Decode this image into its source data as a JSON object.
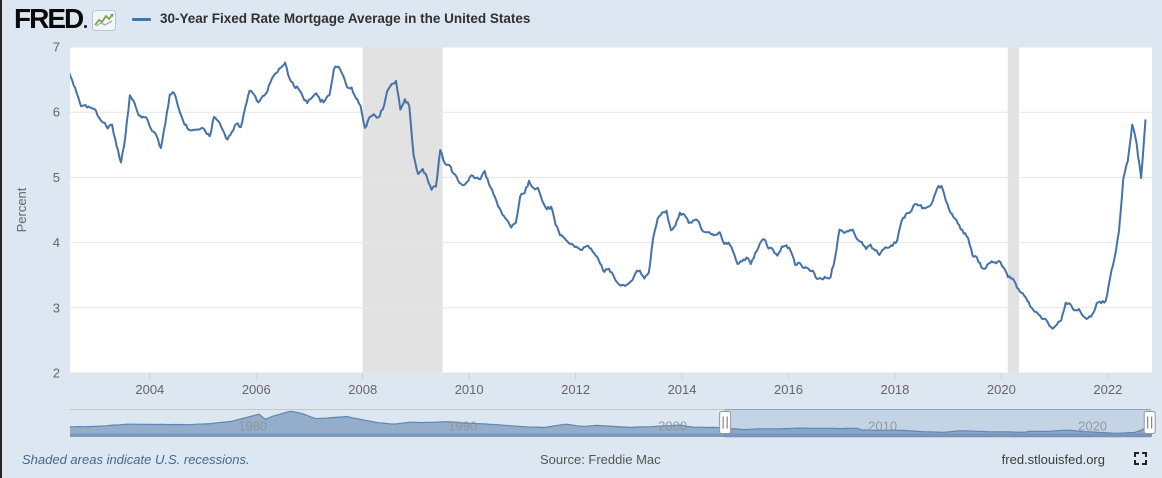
{
  "header": {
    "logo_text": "FRED",
    "title": "30-Year Fixed Rate Mortgage Average in the United States"
  },
  "footer": {
    "note": "Shaded areas indicate U.S. recessions.",
    "source": "Source: Freddie Mac",
    "site": "fred.stlouisfed.org"
  },
  "colors": {
    "page_bg": "#dce7f1",
    "plot_bg": "#ffffff",
    "series_line": "#4572a7",
    "recession_band": "#e2e2e2",
    "gridline": "#e6e6e6",
    "axis_text": "#666666",
    "nav_fill": "#93adcb",
    "nav_stroke": "#5f87b2",
    "nav_base_band": "#7e99bc",
    "nav_label": "#8f9499",
    "selection_tint": "rgba(105,138,180,0.20)",
    "selection_border": "rgba(105,138,180,0.50)"
  },
  "chart_data": {
    "type": "line",
    "title": "30-Year Fixed Rate Mortgage Average in the United States",
    "ylabel": "Percent",
    "ylim": [
      2,
      7
    ],
    "yticks": [
      2,
      3,
      4,
      5,
      6,
      7
    ],
    "xlim": [
      2002.5,
      2022.83
    ],
    "xticks": [
      2004,
      2006,
      2008,
      2010,
      2012,
      2014,
      2016,
      2018,
      2020,
      2022
    ],
    "grid": "horizontal",
    "legend_position": "top-header",
    "recessions": [
      [
        2008.0,
        2009.5
      ],
      [
        2020.12,
        2020.33
      ]
    ],
    "series": {
      "name": "30-Year Fixed Rate Mortgage Average in the United States",
      "units": "percent",
      "frequency": "monthly (weekly source data)",
      "monthly_percent": {
        "2002": [
          null,
          null,
          null,
          null,
          6.81,
          6.65,
          6.49,
          6.29,
          6.09,
          6.11,
          6.07,
          6.05
        ],
        "2003": [
          5.92,
          5.84,
          5.75,
          5.81,
          5.48,
          5.23,
          5.63,
          6.26,
          6.15,
          5.95,
          5.93,
          5.88
        ],
        "2004": [
          5.71,
          5.64,
          5.45,
          5.83,
          6.27,
          6.29,
          6.06,
          5.87,
          5.75,
          5.72,
          5.73,
          5.75
        ],
        "2005": [
          5.71,
          5.63,
          5.93,
          5.86,
          5.72,
          5.58,
          5.7,
          5.82,
          5.77,
          6.07,
          6.33,
          6.27
        ],
        "2006": [
          6.15,
          6.25,
          6.32,
          6.51,
          6.6,
          6.68,
          6.76,
          6.52,
          6.4,
          6.36,
          6.24,
          6.14
        ],
        "2007": [
          6.22,
          6.29,
          6.16,
          6.18,
          6.26,
          6.66,
          6.7,
          6.57,
          6.38,
          6.38,
          6.21,
          6.1
        ],
        "2008": [
          5.76,
          5.92,
          5.97,
          5.92,
          6.04,
          6.32,
          6.43,
          6.48,
          6.04,
          6.2,
          6.09,
          5.33
        ],
        "2009": [
          5.05,
          5.13,
          5.0,
          4.81,
          4.86,
          5.42,
          5.22,
          5.19,
          5.06,
          4.95,
          4.88,
          4.93
        ],
        "2010": [
          5.03,
          4.99,
          4.97,
          5.1,
          4.89,
          4.74,
          4.56,
          4.43,
          4.35,
          4.23,
          4.3,
          4.71
        ],
        "2011": [
          4.76,
          4.95,
          4.84,
          4.84,
          4.64,
          4.51,
          4.55,
          4.27,
          4.11,
          4.07,
          3.99,
          3.96
        ],
        "2012": [
          3.92,
          3.89,
          3.95,
          3.91,
          3.8,
          3.68,
          3.55,
          3.6,
          3.5,
          3.38,
          3.35,
          3.35
        ],
        "2013": [
          3.41,
          3.53,
          3.57,
          3.45,
          3.54,
          4.07,
          4.37,
          4.46,
          4.49,
          4.19,
          4.26,
          4.46
        ],
        "2014": [
          4.43,
          4.3,
          4.34,
          4.34,
          4.19,
          4.16,
          4.13,
          4.12,
          4.16,
          3.98,
          4.0,
          3.86
        ],
        "2015": [
          3.67,
          3.71,
          3.77,
          3.67,
          3.84,
          3.98,
          4.05,
          3.91,
          3.89,
          3.8,
          3.94,
          3.96
        ],
        "2016": [
          3.87,
          3.66,
          3.69,
          3.61,
          3.6,
          3.57,
          3.44,
          3.44,
          3.46,
          3.47,
          3.77,
          4.2
        ],
        "2017": [
          4.15,
          4.17,
          4.2,
          4.05,
          4.01,
          3.9,
          3.97,
          3.88,
          3.81,
          3.9,
          3.92,
          3.95
        ],
        "2018": [
          4.03,
          4.33,
          4.44,
          4.47,
          4.59,
          4.57,
          4.53,
          4.55,
          4.63,
          4.83,
          4.87,
          4.64
        ],
        "2019": [
          4.46,
          4.37,
          4.27,
          4.14,
          4.07,
          3.8,
          3.77,
          3.62,
          3.61,
          3.69,
          3.7,
          3.72
        ],
        "2020": [
          3.62,
          3.47,
          3.45,
          3.31,
          3.23,
          3.16,
          3.02,
          2.94,
          2.89,
          2.83,
          2.77,
          2.68
        ],
        "2021": [
          2.74,
          2.81,
          3.08,
          3.06,
          2.96,
          2.98,
          2.87,
          2.84,
          2.9,
          3.07,
          3.07,
          3.1
        ],
        "2022": [
          3.45,
          3.76,
          4.17,
          4.98,
          5.25,
          5.81,
          5.51,
          4.99,
          5.89
        ]
      }
    },
    "navigator": {
      "xlim": [
        1971.3,
        2022.83
      ],
      "ylim": [
        0,
        19
      ],
      "labels": [
        1980,
        1990,
        2000,
        2010,
        2020
      ],
      "selection": [
        2002.5,
        2022.72
      ],
      "points": [
        [
          1971.3,
          7.33
        ],
        [
          1972,
          7.38
        ],
        [
          1973,
          8.04
        ],
        [
          1974,
          9.19
        ],
        [
          1975,
          9.05
        ],
        [
          1976,
          8.87
        ],
        [
          1977,
          8.85
        ],
        [
          1978,
          9.64
        ],
        [
          1979,
          11.2
        ],
        [
          1980.3,
          16.35
        ],
        [
          1980.6,
          12.7
        ],
        [
          1981,
          15.1
        ],
        [
          1981.8,
          18.45
        ],
        [
          1982.3,
          17.0
        ],
        [
          1983,
          13.2
        ],
        [
          1983.6,
          13.6
        ],
        [
          1984.5,
          14.68
        ],
        [
          1985,
          13.1
        ],
        [
          1986,
          10.2
        ],
        [
          1986.8,
          9.3
        ],
        [
          1987.5,
          10.6
        ],
        [
          1988,
          10.3
        ],
        [
          1989.2,
          11.0
        ],
        [
          1990,
          10.1
        ],
        [
          1991,
          9.5
        ],
        [
          1992,
          8.4
        ],
        [
          1993,
          7.3
        ],
        [
          1993.9,
          6.83
        ],
        [
          1994.9,
          9.2
        ],
        [
          1995.7,
          7.6
        ],
        [
          1996.4,
          8.3
        ],
        [
          1997,
          7.8
        ],
        [
          1998,
          6.9
        ],
        [
          1999,
          7.4
        ],
        [
          2000.4,
          8.5
        ],
        [
          2001,
          7.0
        ],
        [
          2002,
          6.9
        ],
        [
          2003,
          5.8
        ],
        [
          2003.5,
          5.3
        ],
        [
          2004,
          5.8
        ],
        [
          2005,
          5.8
        ],
        [
          2006,
          6.4
        ],
        [
          2007,
          6.3
        ],
        [
          2008,
          6.0
        ],
        [
          2008.8,
          6.3
        ],
        [
          2009,
          5.0
        ],
        [
          2010,
          4.8
        ],
        [
          2011,
          4.7
        ],
        [
          2012,
          3.7
        ],
        [
          2012.9,
          3.35
        ],
        [
          2013.6,
          4.4
        ],
        [
          2014,
          4.4
        ],
        [
          2015,
          3.8
        ],
        [
          2016,
          3.7
        ],
        [
          2016.8,
          3.45
        ],
        [
          2017,
          4.1
        ],
        [
          2018,
          4.1
        ],
        [
          2018.9,
          4.9
        ],
        [
          2019.5,
          3.8
        ],
        [
          2020,
          3.6
        ],
        [
          2020.9,
          2.8
        ],
        [
          2021.5,
          2.9
        ],
        [
          2022,
          3.2
        ],
        [
          2022.45,
          5.8
        ],
        [
          2022.6,
          5.0
        ],
        [
          2022.72,
          5.9
        ]
      ]
    }
  }
}
